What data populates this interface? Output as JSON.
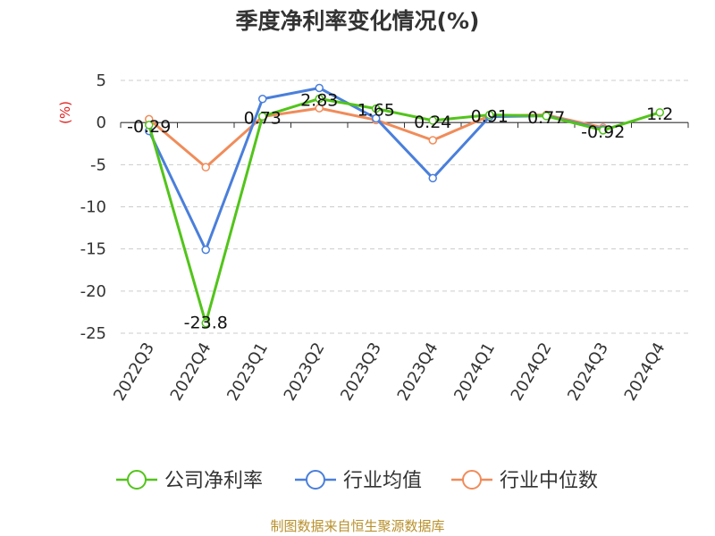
{
  "chart_data": {
    "type": "line",
    "title": "季度净利率变化情况(%)",
    "ylabel": "(%)",
    "categories": [
      "2022Q3",
      "2022Q4",
      "2023Q1",
      "2023Q2",
      "2023Q3",
      "2023Q4",
      "2024Q1",
      "2024Q2",
      "2024Q3",
      "2024Q4"
    ],
    "ylim": [
      -25,
      5
    ],
    "yticks": [
      5,
      0,
      -5,
      -10,
      -15,
      -20,
      -25
    ],
    "grid": true,
    "legend_position": "bottom",
    "series": [
      {
        "name": "公司净利率",
        "color": "#52c41a",
        "values": [
          -0.29,
          -23.8,
          0.73,
          2.83,
          1.65,
          0.24,
          0.91,
          0.77,
          -0.92,
          1.2
        ],
        "labels": [
          "-0.29",
          "-23.8",
          "0.73",
          "2.83",
          "1.65",
          "0.24",
          "0.91",
          "0.77",
          "-0.92",
          "1.2"
        ]
      },
      {
        "name": "行业均值",
        "color": "#4a7fdb",
        "values": [
          -1.0,
          -15.1,
          2.8,
          4.1,
          0.5,
          -6.6,
          0.7,
          0.8,
          -0.8,
          null
        ]
      },
      {
        "name": "行业中位数",
        "color": "#f08c5a",
        "values": [
          0.4,
          -5.3,
          0.7,
          1.7,
          0.3,
          -2.1,
          0.8,
          0.9,
          -0.6,
          null
        ]
      }
    ]
  },
  "source_note": "制图数据来自恒生聚源数据库"
}
